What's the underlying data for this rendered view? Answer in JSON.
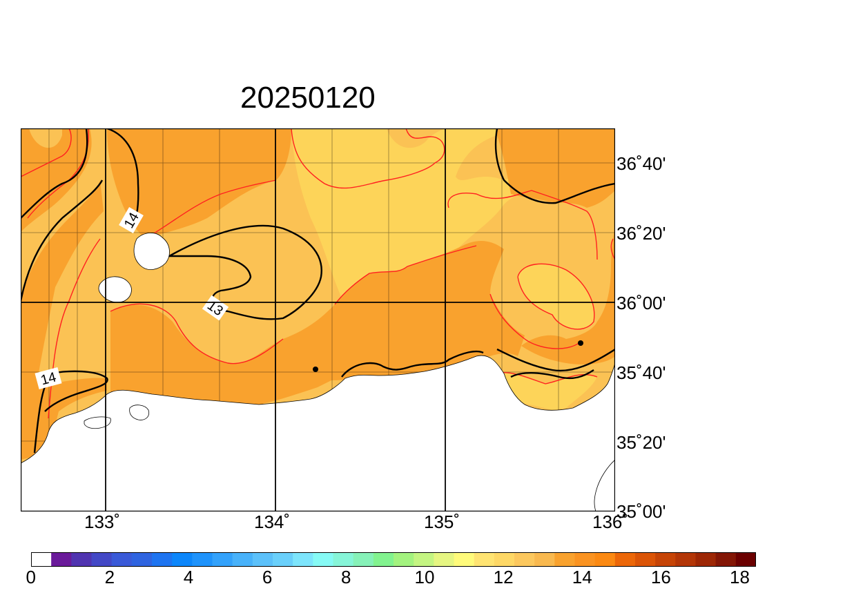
{
  "title": "20250120",
  "map": {
    "lat_labels": [
      "36˚40'",
      "36˚20'",
      "36˚00'",
      "35˚40'",
      "35˚20'",
      "35˚00'"
    ],
    "lon_labels": [
      "133˚",
      "134˚",
      "135˚",
      "136˚"
    ],
    "contour_labels": [
      "14",
      "13",
      "14"
    ],
    "colors": {
      "band_12_13": "#fdd459",
      "band_13_14": "#fbc254",
      "band_14_15": "#f9a22e",
      "minor_contour": "#ff2020",
      "major_contour": "#000000",
      "land": "#ffffff"
    }
  },
  "colorbar": {
    "colors": [
      "#ffffff",
      "#6a1a9a",
      "#5034b0",
      "#4348c6",
      "#3a5ad8",
      "#2f64e0",
      "#1e74f0",
      "#0c86fa",
      "#1f93fb",
      "#33a2fb",
      "#48b2fa",
      "#5cc1fa",
      "#6ad0fb",
      "#7de5fc",
      "#86faf5",
      "#86f5d8",
      "#86f1b8",
      "#82f38f",
      "#a3f37f",
      "#c4f582",
      "#e6f682",
      "#fffb7b",
      "#ffe472",
      "#fed866",
      "#fcc85e",
      "#f9b94f",
      "#f9a22e",
      "#fa9321",
      "#fb8912",
      "#ec6708",
      "#db5406",
      "#c64406",
      "#b33607",
      "#9d2705",
      "#831605",
      "#6b0000"
    ],
    "tick_labels": [
      "0",
      "2",
      "4",
      "6",
      "8",
      "10",
      "12",
      "14",
      "16",
      "18"
    ]
  }
}
